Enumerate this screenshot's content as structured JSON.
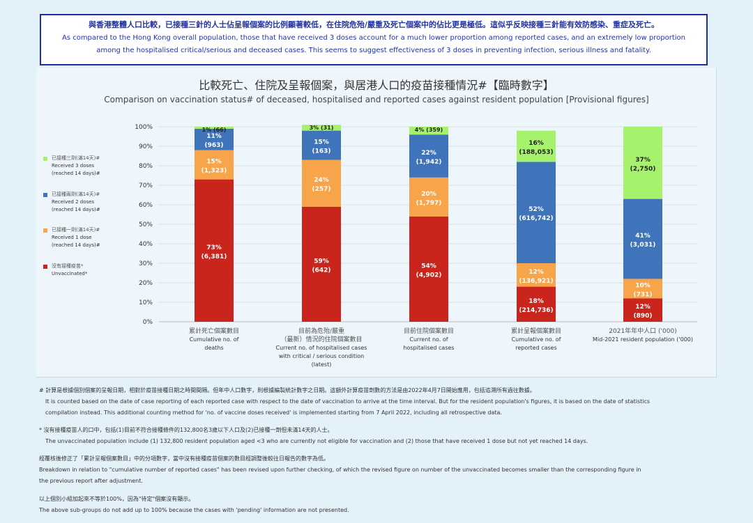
{
  "header": {
    "zh": "與香港整體人口比較，已接種三針的人士佔呈報個案的比例顯著較低，在住院危殆/嚴重及死亡個案中的佔比更是極低。這似乎反映接種三針能有效防感染、重症及死亡。",
    "en1": "As compared to the Hong Kong overall population, those that have received 3 doses account for a much lower proportion among reported cases, and an extremely low proportion",
    "en2": "among the hospitalised critical/serious and deceased cases.  This seems to suggest effectiveness of 3 doses in preventing infection, serious illness and fatality."
  },
  "chart_title_zh": "比較死亡、住院及呈報個案，與居港人口的疫苗接種情況#【臨時數字】",
  "chart_title_en": "Comparison on vaccination status# of deceased, hospitalised and reported cases against resident population [Provisional figures]",
  "legend": [
    {
      "zh": "已接種三劑(滿14天)#",
      "en1": "Received 3 doses",
      "en2": "(reached 14 days)#",
      "color": "#a6f26d"
    },
    {
      "zh": "已接種兩劑(滿14天)#",
      "en1": "Received 2 doses",
      "en2": "(reached 14 days)#",
      "color": "#3f73ba"
    },
    {
      "zh": "已接種一劑(滿14天)#",
      "en1": "Received 1 dose",
      "en2": "(reached 14 days)#",
      "color": "#f7a44a"
    },
    {
      "zh": "沒有接種疫苗*",
      "en1": "Unvaccinated*",
      "en2": "",
      "color": "#c9251d"
    }
  ],
  "chart_data": {
    "type": "bar",
    "stacked": true,
    "ylim": [
      0,
      100
    ],
    "yticks": [
      "0%",
      "10%",
      "20%",
      "30%",
      "40%",
      "50%",
      "60%",
      "70%",
      "80%",
      "90%",
      "100%"
    ],
    "categories": [
      {
        "zh": "累計死亡個案數目",
        "en": [
          "Cumulative no. of",
          "deaths"
        ]
      },
      {
        "zh": "目前為危殆/嚴重",
        "zh2": "（最新）情況的住院個案數目",
        "en": [
          "Current no. of hospitalised cases",
          "with critical / serious condition",
          "(latest)"
        ]
      },
      {
        "zh": "目前住院個案數目",
        "en": [
          "Current no. of",
          "hospitalised cases"
        ]
      },
      {
        "zh": "累計呈報個案數目",
        "en": [
          "Cumulative no. of",
          "reported cases"
        ]
      },
      {
        "zh": "2021年年中人口 ('000)",
        "en": [
          "Mid-2021 resident population ('000)"
        ]
      }
    ],
    "series": [
      {
        "name": "Unvaccinated",
        "color": "#c9251d",
        "values": [
          73,
          59,
          54,
          18,
          12
        ],
        "labels": [
          "73%",
          "59%",
          "54%",
          "18%",
          "12%"
        ],
        "counts": [
          "(6,381)",
          "(642)",
          "(4,902)",
          "(214,736)",
          "(890)"
        ]
      },
      {
        "name": "Received 1 dose",
        "color": "#f7a44a",
        "values": [
          15,
          24,
          20,
          12,
          10
        ],
        "labels": [
          "15%",
          "24%",
          "20%",
          "12%",
          "10%"
        ],
        "counts": [
          "(1,323)",
          "(257)",
          "(1,797)",
          "(136,921)",
          "(731)"
        ]
      },
      {
        "name": "Received 2 doses",
        "color": "#3f73ba",
        "values": [
          11,
          15,
          22,
          52,
          41
        ],
        "labels": [
          "11%",
          "15%",
          "22%",
          "52%",
          "41%"
        ],
        "counts": [
          "(963)",
          "(163)",
          "(1,942)",
          "(616,742)",
          "(3,031)"
        ]
      },
      {
        "name": "Received 3 doses",
        "color": "#a6f26d",
        "values": [
          1,
          3,
          4,
          16,
          37
        ],
        "labels": [
          "1% (66)",
          "3% (31)",
          "4% (359)",
          "16%",
          "37%"
        ],
        "counts": [
          "",
          "",
          "",
          "(188,053)",
          "(2,750)"
        ]
      }
    ]
  },
  "notes": [
    {
      "zh": "# 計算是根據個別個案的呈報日期，相對於疫苗接種日期之時間間隔。但年中人口數字，則根據編製統計數字之日期。這額外計算疫苗劑數的方法是由2022年4月7日開始應用，包括追溯所有過往數據。",
      "en1": "It is counted based on the date of case reporting of each reported case with respect to the date of vaccination to arrive at the time interval.  But for the resident population's figures, it is based on the date of statistics",
      "en2": "compilation instead.  This additional counting method for 'no. of vaccine doses received' is implemented starting from 7 April 2022, including all retrospective data."
    },
    {
      "zh": "* 沒有接種疫苗人的口中，包括(1)目前不符合接種條件的132,800名3歲以下人口及(2)已接種一劑但未滿14天的人士。",
      "en1": "The unvaccinated population include (1) 132,800 resident population aged <3 who are currently not eligible for vaccination and (2) those that have received 1 dose but not yet reached 14 days.",
      "en2": ""
    },
    {
      "zh": "經覆核後修正了「累計呈報個案數目」中的分項數字，當中沒有接種疫苗個案的數目經調整後較往日報告的數字為低。",
      "en1": "Breakdown in relation to \"cumulative number of reported cases\" has been revised upon further checking, of which the revised figure on number of the unvaccinated becomes smaller than the corresponding figure in",
      "en2": "the previous report after adjustment."
    },
    {
      "zh": "以上個別小組加起來不等於100%，因為\"待定\"個案沒有顯示。",
      "en1": "The above sub-groups do not add up to 100% because the cases with 'pending' information are not presented.",
      "en2": ""
    }
  ]
}
